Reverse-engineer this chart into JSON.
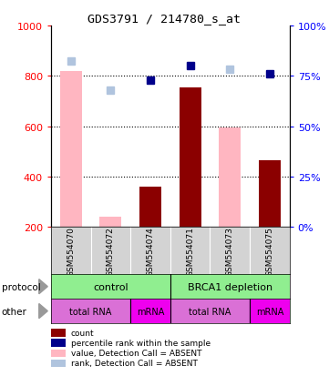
{
  "title": "GDS3791 / 214780_s_at",
  "samples": [
    "GSM554070",
    "GSM554072",
    "GSM554074",
    "GSM554071",
    "GSM554073",
    "GSM554075"
  ],
  "bar_values": [
    null,
    null,
    360,
    755,
    null,
    465
  ],
  "absent_bar_values": [
    820,
    240,
    null,
    null,
    595,
    null
  ],
  "absent_bar_color": "#ffb6c1",
  "dot_values": [
    null,
    null,
    785,
    840,
    null,
    810
  ],
  "dot_color": "#00008b",
  "absent_dot_values": [
    860,
    745,
    null,
    null,
    825,
    null
  ],
  "absent_dot_color": "#b0c4de",
  "ylim_left": [
    200,
    1000
  ],
  "ylim_right": [
    0,
    100
  ],
  "yticks_left": [
    200,
    400,
    600,
    800,
    1000
  ],
  "yticks_right": [
    0,
    25,
    50,
    75,
    100
  ],
  "protocol_labels": [
    [
      "control",
      0,
      3
    ],
    [
      "BRCA1 depletion",
      3,
      6
    ]
  ],
  "protocol_color": "#90ee90",
  "other_labels": [
    [
      "total RNA",
      0,
      2
    ],
    [
      "mRNA",
      2,
      3
    ],
    [
      "total RNA",
      3,
      5
    ],
    [
      "mRNA",
      5,
      6
    ]
  ],
  "other_color_1": "#da70d6",
  "other_color_2": "#ee00ee",
  "legend_items": [
    {
      "color": "#8b0000",
      "label": "count"
    },
    {
      "color": "#00008b",
      "label": "percentile rank within the sample"
    },
    {
      "color": "#ffb6c1",
      "label": "value, Detection Call = ABSENT"
    },
    {
      "color": "#b0c4de",
      "label": "rank, Detection Call = ABSENT"
    }
  ]
}
